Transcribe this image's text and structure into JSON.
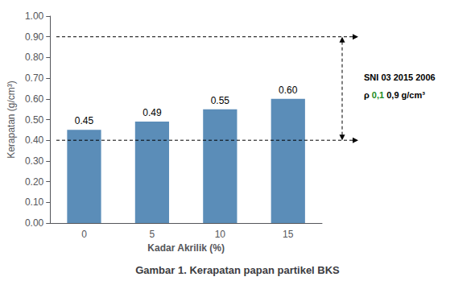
{
  "chart_data": {
    "type": "bar",
    "title": "Gambar 1. Kerapatan papan partikel BKS",
    "categories": [
      "0",
      "5",
      "10",
      "15"
    ],
    "values": [
      0.45,
      0.49,
      0.55,
      0.6
    ],
    "value_labels": [
      "0.45",
      "0.49",
      "0.55",
      "0.60"
    ],
    "data_labels": true,
    "color": "#5B8DB8",
    "xlabel": "Kadar Akrilik (%)",
    "ylabel": "Kerapatan (g/cm³)",
    "ylim": [
      0.0,
      1.0
    ],
    "yticks": [
      {
        "value": 0.0,
        "label": "0.00"
      },
      {
        "value": 0.1,
        "label": "0.10"
      },
      {
        "value": 0.2,
        "label": "0.20"
      },
      {
        "value": 0.3,
        "label": "0.30"
      },
      {
        "value": 0.4,
        "label": "0.40"
      },
      {
        "value": 0.5,
        "label": "0.50"
      },
      {
        "value": 0.6,
        "label": "0.60"
      },
      {
        "value": 0.7,
        "label": "0.70"
      },
      {
        "value": 0.8,
        "label": "0.80"
      },
      {
        "value": 0.9,
        "label": "0.90"
      },
      {
        "value": 1.0,
        "label": "1.00"
      }
    ],
    "grid": false,
    "annotations": [
      {
        "type": "hline",
        "y": 0.9,
        "line_style": "dashed"
      },
      {
        "type": "hline",
        "y": 0.4,
        "line_style": "dashed"
      },
      {
        "type": "arrow",
        "y": [
          0.9,
          0.4
        ],
        "line_style": "dashed"
      },
      {
        "type": "text",
        "parts": [
          {
            "text": "SNI 03 2015 2006"
          }
        ]
      },
      {
        "type": "text",
        "parts": [
          {
            "text": "ρ"
          },
          {
            "text": "0,1",
            "color": "#228B22"
          },
          {
            "text": "0,9 g/cm³"
          }
        ]
      }
    ]
  }
}
